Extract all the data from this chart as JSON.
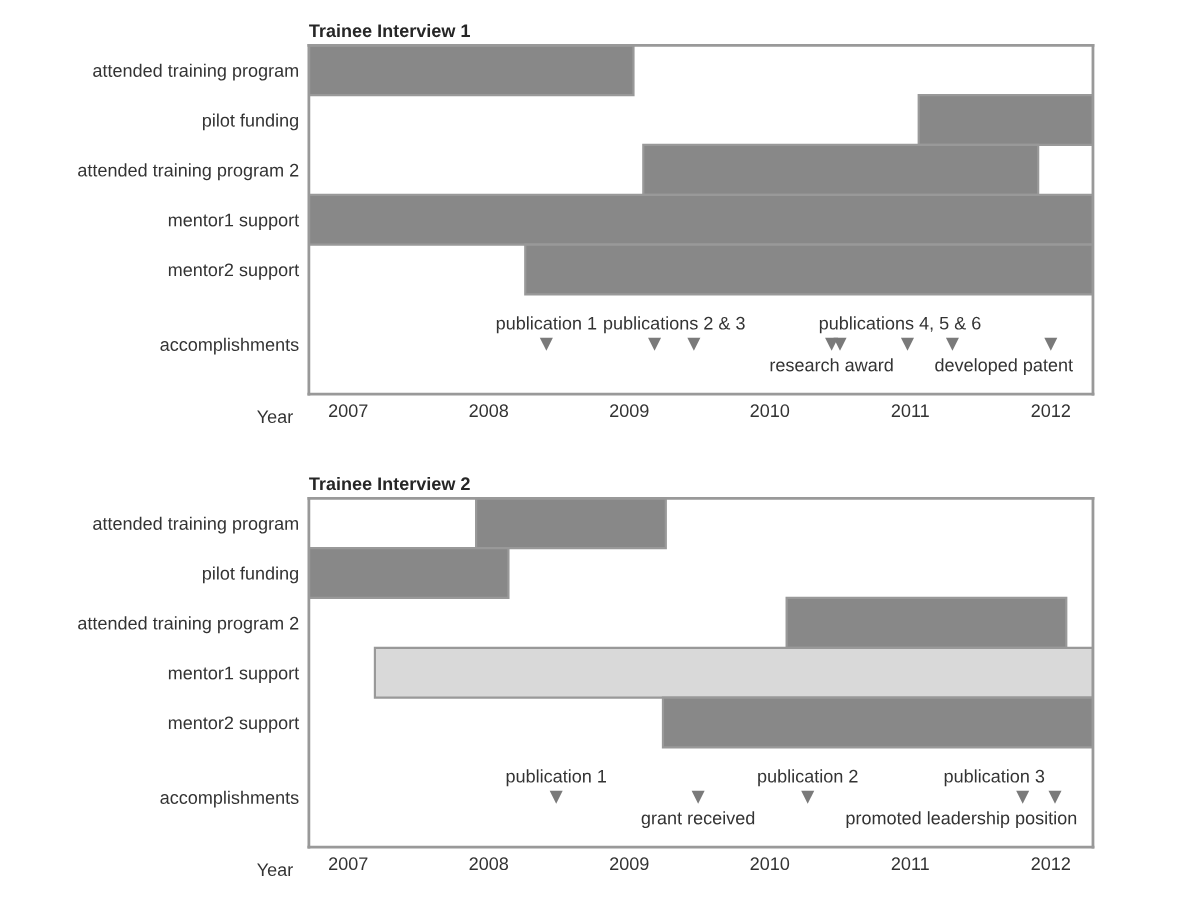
{
  "chart_data": [
    {
      "type": "bar",
      "orientation": "horizontal",
      "title": "Trainee Interview 1",
      "xlabel": "Year",
      "categories": [
        "attended training program",
        "pilot funding",
        "attended training program 2",
        "mentor1 support",
        "mentor2 support",
        "accomplishments"
      ],
      "xlim": [
        2006.72,
        2012.3
      ],
      "xticks": [
        2007,
        2008,
        2009,
        2010,
        2011,
        2012
      ],
      "series": [
        {
          "color": "#888888",
          "base": [
            2006.72,
            2011.06,
            2009.1,
            2006.72,
            2008.26,
            null
          ],
          "values": [
            2.31,
            1.24,
            2.81,
            5.58,
            4.04,
            null
          ]
        },
        {
          "type": "scatter",
          "color": "#7a7a7a",
          "marker": "triangle",
          "x": [
            "accomplishments",
            "accomplishments",
            "accomplishments",
            "accomplishments",
            "accomplishments",
            "accomplishments"
          ],
          "values": [
            2008.41,
            2009.18,
            2009.46,
            2010.5,
            2010.98,
            2011.3
          ],
          "value_labels": [
            "publication 1",
            "publications 2 & 3",
            null,
            "publications 4, 5 & 6",
            null,
            null
          ]
        },
        {
          "type": "scatter",
          "color": "#7a7a7a",
          "marker": "triangle",
          "x": [
            "accomplishments",
            "accomplishments"
          ],
          "values": [
            2010.44,
            2012.0
          ],
          "value_labels": [
            "research award",
            "developed patent"
          ]
        }
      ]
    },
    {
      "type": "bar",
      "orientation": "horizontal",
      "title": "Trainee Interview 2",
      "xlabel": "Year",
      "categories": [
        "attended training program",
        "pilot funding",
        "attended training program 2",
        "mentor1 support",
        "mentor2 support",
        "accomplishments"
      ],
      "xlim": [
        2006.72,
        2012.3
      ],
      "xticks": [
        2007,
        2008,
        2009,
        2010,
        2011,
        2012
      ],
      "series": [
        {
          "colors": [
            "#888888",
            "#888888",
            "#888888",
            "#d9d9d9",
            "#888888",
            null
          ],
          "base": [
            2007.91,
            2006.72,
            2010.12,
            2007.19,
            2009.24,
            null
          ],
          "values": [
            1.35,
            1.42,
            1.99,
            5.11,
            3.06,
            null
          ]
        },
        {
          "type": "scatter",
          "color": "#7a7a7a",
          "marker": "triangle",
          "x": [
            "accomplishments",
            "accomplishments",
            "accomplishments"
          ],
          "values": [
            2008.48,
            2010.27,
            2011.8
          ],
          "value_labels": [
            "publication 1",
            "publication 2",
            "publication 3"
          ]
        },
        {
          "type": "scatter",
          "color": "#7a7a7a",
          "marker": "triangle",
          "x": [
            "accomplishments",
            "accomplishments"
          ],
          "values": [
            2009.49,
            2012.03
          ],
          "value_labels": [
            "grant received",
            "promoted leadership position"
          ]
        }
      ]
    }
  ]
}
